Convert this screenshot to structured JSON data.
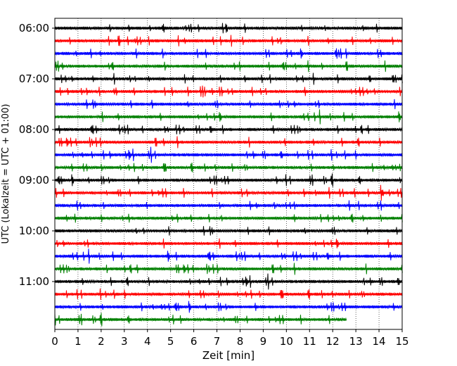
{
  "chart_data": {
    "type": "line",
    "title": "",
    "xlabel": "Zeit  [min]",
    "ylabel": "UTC (Lokalzeit = UTC + 01:00)",
    "xlim": [
      0,
      15
    ],
    "x_ticks": [
      "0",
      "1",
      "2",
      "3",
      "4",
      "5",
      "6",
      "7",
      "8",
      "9",
      "10",
      "11",
      "12",
      "13",
      "14",
      "15"
    ],
    "y_ticks": [
      "06:00",
      "07:00",
      "08:00",
      "09:00",
      "10:00",
      "11:00"
    ],
    "trace_interval_min": 15,
    "first_trace": "06:00",
    "trace_colors": [
      "#000000",
      "#ff0000",
      "#0000ff",
      "#008000"
    ],
    "grid": "vertical dotted lines at each minute",
    "traces": [
      {
        "start": "06:00",
        "color": "black",
        "end_min": 15
      },
      {
        "start": "06:15",
        "color": "red",
        "end_min": 15
      },
      {
        "start": "06:30",
        "color": "blue",
        "end_min": 15
      },
      {
        "start": "06:45",
        "color": "green",
        "end_min": 15
      },
      {
        "start": "07:00",
        "color": "black",
        "end_min": 15
      },
      {
        "start": "07:15",
        "color": "red",
        "end_min": 15
      },
      {
        "start": "07:30",
        "color": "blue",
        "end_min": 15
      },
      {
        "start": "07:45",
        "color": "green",
        "end_min": 15
      },
      {
        "start": "08:00",
        "color": "black",
        "end_min": 15
      },
      {
        "start": "08:15",
        "color": "red",
        "end_min": 15
      },
      {
        "start": "08:30",
        "color": "blue",
        "end_min": 15
      },
      {
        "start": "08:45",
        "color": "green",
        "end_min": 15
      },
      {
        "start": "09:00",
        "color": "black",
        "end_min": 15
      },
      {
        "start": "09:15",
        "color": "red",
        "end_min": 15
      },
      {
        "start": "09:30",
        "color": "blue",
        "end_min": 15
      },
      {
        "start": "09:45",
        "color": "green",
        "end_min": 15
      },
      {
        "start": "10:00",
        "color": "black",
        "end_min": 15
      },
      {
        "start": "10:15",
        "color": "red",
        "end_min": 15
      },
      {
        "start": "10:30",
        "color": "blue",
        "end_min": 15
      },
      {
        "start": "10:45",
        "color": "green",
        "end_min": 15
      },
      {
        "start": "11:00",
        "color": "black",
        "end_min": 15
      },
      {
        "start": "11:15",
        "color": "red",
        "end_min": 15
      },
      {
        "start": "11:30",
        "color": "blue",
        "end_min": 15
      },
      {
        "start": "11:45",
        "color": "green",
        "end_min": 12.6
      }
    ]
  }
}
